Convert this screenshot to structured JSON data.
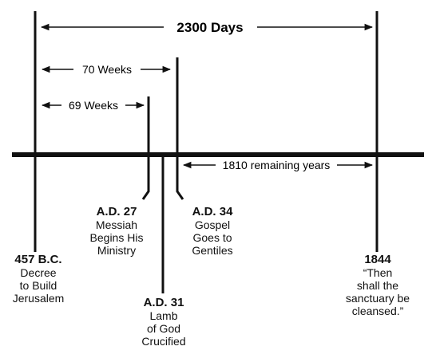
{
  "spans": {
    "days": "2300 Days",
    "seventy": "70 Weeks",
    "sixtynine": "69 Weeks",
    "remaining": "1810 remaining years"
  },
  "events": {
    "decree": {
      "date": "457 B.C.",
      "lines": [
        "Decree",
        "to Build",
        "Jerusalem"
      ]
    },
    "ad27": {
      "date": "A.D. 27",
      "lines": [
        "Messiah",
        "Begins His",
        "Ministry"
      ]
    },
    "ad31": {
      "date": "A.D. 31",
      "lines": [
        "Lamb",
        "of God",
        "Crucified"
      ]
    },
    "ad34": {
      "date": "A.D. 34",
      "lines": [
        "Gospel",
        "Goes to",
        "Gentiles"
      ]
    },
    "y1844": {
      "date": "1844",
      "lines": [
        "“Then",
        "shall the",
        "sanctuary be",
        "cleansed.”"
      ]
    }
  },
  "colors": {
    "ink": "#111111",
    "background": "#ffffff"
  }
}
